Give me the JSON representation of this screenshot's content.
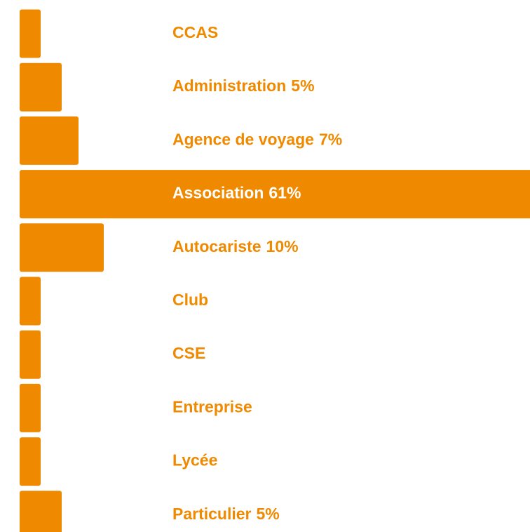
{
  "chart_data": {
    "type": "bar",
    "orientation": "horizontal",
    "categories": [
      "CCAS",
      "Administration",
      "Agence de voyage",
      "Association",
      "Autocariste",
      "Club",
      "CSE",
      "Entreprise",
      "Lycée",
      "Particulier"
    ],
    "values": [
      2.5,
      5,
      7,
      61,
      10,
      2.5,
      2.5,
      2.5,
      2.5,
      5
    ],
    "value_labels": [
      null,
      "5%",
      "7%",
      "61%",
      "10%",
      null,
      null,
      null,
      null,
      "5%"
    ],
    "color": "#ef8a00"
  }
}
